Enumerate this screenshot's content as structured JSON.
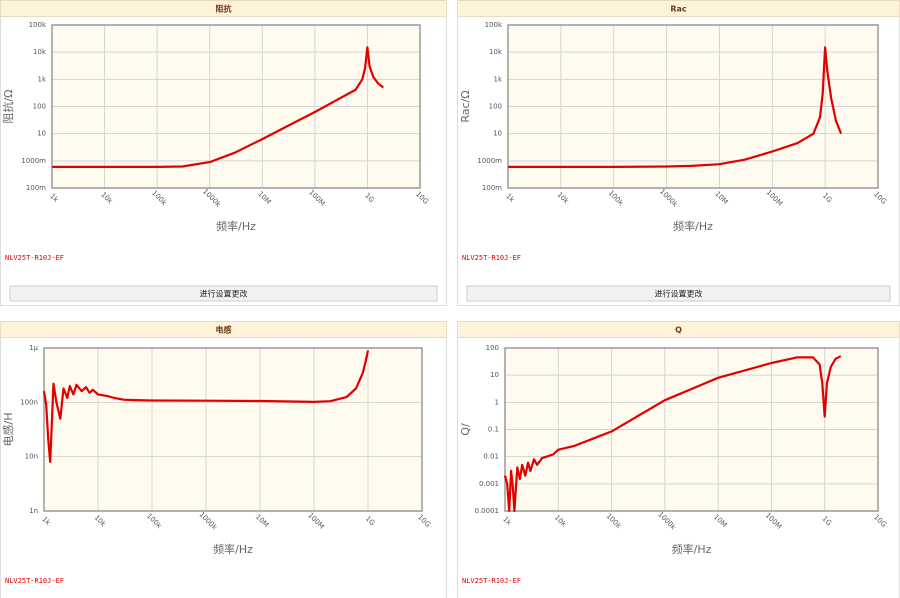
{
  "chart_data": [
    {
      "type": "line",
      "title": "阻抗",
      "xlabel": "频率/Hz",
      "ylabel": "阻抗/Ω",
      "xscale": "log",
      "yscale": "log",
      "grid": true,
      "xlim": [
        1000,
        10000000000
      ],
      "ylim": [
        0.1,
        100000
      ],
      "xticks": [
        {
          "value": 1000,
          "label": "1k"
        },
        {
          "value": 10000,
          "label": "10k"
        },
        {
          "value": 100000,
          "label": "100k"
        },
        {
          "value": 1000000,
          "label": "1000k"
        },
        {
          "value": 10000000,
          "label": "10M"
        },
        {
          "value": 100000000,
          "label": "100M"
        },
        {
          "value": 1000000000,
          "label": "1G"
        },
        {
          "value": 10000000000,
          "label": "10G"
        }
      ],
      "yticks": [
        {
          "value": 0.1,
          "label": "100m"
        },
        {
          "value": 1,
          "label": "1000m"
        },
        10,
        100,
        {
          "value": 1000,
          "label": "1k"
        },
        {
          "value": 10000,
          "label": "10k"
        },
        {
          "value": 100000,
          "label": "100k"
        }
      ],
      "x": [
        1000,
        10000,
        100000,
        300000,
        1000000,
        3000000,
        10000000,
        30000000,
        100000000,
        300000000,
        600000000,
        800000000,
        900000000,
        1000000000,
        1100000000,
        1300000000,
        1600000000,
        2000000000
      ],
      "series": [
        {
          "name": "NLV25T-R10J-EF",
          "color": "#e00000",
          "values": [
            0.6,
            0.6,
            0.6,
            0.62,
            0.9,
            2.0,
            6.3,
            19,
            63,
            200,
            420,
            1000,
            2500,
            15000,
            3000,
            1200,
            700,
            500
          ]
        }
      ]
    },
    {
      "type": "line",
      "title": "Rac",
      "xlabel": "频率/Hz",
      "ylabel": "Rac/Ω",
      "xscale": "log",
      "yscale": "log",
      "grid": true,
      "xlim": [
        1000,
        10000000000
      ],
      "ylim": [
        0.1,
        100000
      ],
      "xticks": [
        {
          "value": 1000,
          "label": "1k"
        },
        {
          "value": 10000,
          "label": "10k"
        },
        {
          "value": 100000,
          "label": "100k"
        },
        {
          "value": 1000000,
          "label": "1000k"
        },
        {
          "value": 10000000,
          "label": "10M"
        },
        {
          "value": 100000000,
          "label": "100M"
        },
        {
          "value": 1000000000,
          "label": "1G"
        },
        {
          "value": 10000000000,
          "label": "10G"
        }
      ],
      "yticks": [
        {
          "value": 0.1,
          "label": "100m"
        },
        {
          "value": 1,
          "label": "1000m"
        },
        10,
        100,
        {
          "value": 1000,
          "label": "1k"
        },
        {
          "value": 10000,
          "label": "10k"
        },
        {
          "value": 100000,
          "label": "100k"
        }
      ],
      "x": [
        1000,
        10000,
        100000,
        1000000,
        3000000,
        10000000,
        30000000,
        100000000,
        300000000,
        600000000,
        800000000,
        900000000,
        1000000000,
        1100000000,
        1300000000,
        1600000000,
        2000000000
      ],
      "series": [
        {
          "name": "NLV25T-R10J-EF",
          "color": "#e00000",
          "values": [
            0.6,
            0.6,
            0.6,
            0.62,
            0.65,
            0.75,
            1.1,
            2.2,
            4.5,
            10,
            40,
            300,
            15000,
            2000,
            200,
            30,
            10
          ]
        }
      ]
    },
    {
      "type": "line",
      "title": "电感",
      "xlabel": "频率/Hz",
      "ylabel": "电感/H",
      "xscale": "log",
      "yscale": "log",
      "grid": true,
      "xlim": [
        1000,
        10000000000
      ],
      "ylim": [
        1e-09,
        1e-06
      ],
      "xticks": [
        {
          "value": 1000,
          "label": "1k"
        },
        {
          "value": 10000,
          "label": "10k"
        },
        {
          "value": 100000,
          "label": "100k"
        },
        {
          "value": 1000000,
          "label": "1000k"
        },
        {
          "value": 10000000,
          "label": "10M"
        },
        {
          "value": 100000000,
          "label": "100M"
        },
        {
          "value": 1000000000,
          "label": "1G"
        },
        {
          "value": 10000000000,
          "label": "10G"
        }
      ],
      "yticks": [
        {
          "value": 1e-09,
          "label": "1n"
        },
        {
          "value": 1e-08,
          "label": "10n"
        },
        {
          "value": 1e-07,
          "label": "100n"
        },
        {
          "value": 1e-06,
          "label": "1μ"
        }
      ],
      "x": [
        1000,
        1100,
        1200,
        1300,
        1500,
        1700,
        2000,
        2300,
        2700,
        3000,
        3500,
        4000,
        5000,
        6000,
        7000,
        8000,
        10000,
        15000,
        20000,
        30000,
        50000,
        100000,
        1000000,
        10000000,
        100000000,
        200000000,
        400000000,
        600000000,
        800000000,
        900000000,
        1000000000
      ],
      "series": [
        {
          "name": "NLV25T-R10J-EF",
          "color": "#e00000",
          "values": [
            1.6e-07,
            9e-08,
            2e-08,
            8e-09,
            2.2e-07,
            1e-07,
            5e-08,
            1.8e-07,
            1.2e-07,
            2e-07,
            1.4e-07,
            2.1e-07,
            1.6e-07,
            1.9e-07,
            1.5e-07,
            1.7e-07,
            1.4e-07,
            1.3e-07,
            1.2e-07,
            1.12e-07,
            1.1e-07,
            1.08e-07,
            1.07e-07,
            1.06e-07,
            1.02e-07,
            1.05e-07,
            1.25e-07,
            1.8e-07,
            3.5e-07,
            5.5e-07,
            9e-07
          ]
        }
      ]
    },
    {
      "type": "line",
      "title": "Q",
      "xlabel": "频率/Hz",
      "ylabel": "Q/",
      "xscale": "log",
      "yscale": "log",
      "grid": true,
      "xlim": [
        1000,
        10000000000
      ],
      "ylim": [
        0.0001,
        100
      ],
      "xticks": [
        {
          "value": 1000,
          "label": "1k"
        },
        {
          "value": 10000,
          "label": "10k"
        },
        {
          "value": 100000,
          "label": "100k"
        },
        {
          "value": 1000000,
          "label": "1000k"
        },
        {
          "value": 10000000,
          "label": "10M"
        },
        {
          "value": 100000000,
          "label": "100M"
        },
        {
          "value": 1000000000,
          "label": "1G"
        },
        {
          "value": 10000000000,
          "label": "10G"
        }
      ],
      "yticks": [
        0.0001,
        0.001,
        0.01,
        0.1,
        1,
        10,
        100
      ],
      "x": [
        1000,
        1100,
        1200,
        1300,
        1400,
        1500,
        1700,
        1900,
        2100,
        2400,
        2700,
        3000,
        3500,
        4000,
        5000,
        6000,
        8000,
        10000,
        20000,
        50000,
        100000,
        1000000,
        10000000,
        100000000,
        300000000,
        600000000,
        800000000,
        900000000,
        1000000000,
        1100000000,
        1300000000,
        1600000000,
        2000000000
      ],
      "series": [
        {
          "name": "NLV25T-R10J-EF",
          "color": "#e00000",
          "values": [
            0.002,
            0.001,
            0.0001,
            0.003,
            0.0008,
            0.0001,
            0.004,
            0.0015,
            0.005,
            0.002,
            0.006,
            0.003,
            0.008,
            0.005,
            0.009,
            0.01,
            0.012,
            0.018,
            0.025,
            0.05,
            0.085,
            1.2,
            8,
            28,
            45,
            45,
            25,
            5,
            0.3,
            5,
            20,
            40,
            50
          ]
        }
      ]
    }
  ],
  "controls": {
    "button_labels": [
      "进行设置更改",
      "进行设置更改"
    ]
  }
}
